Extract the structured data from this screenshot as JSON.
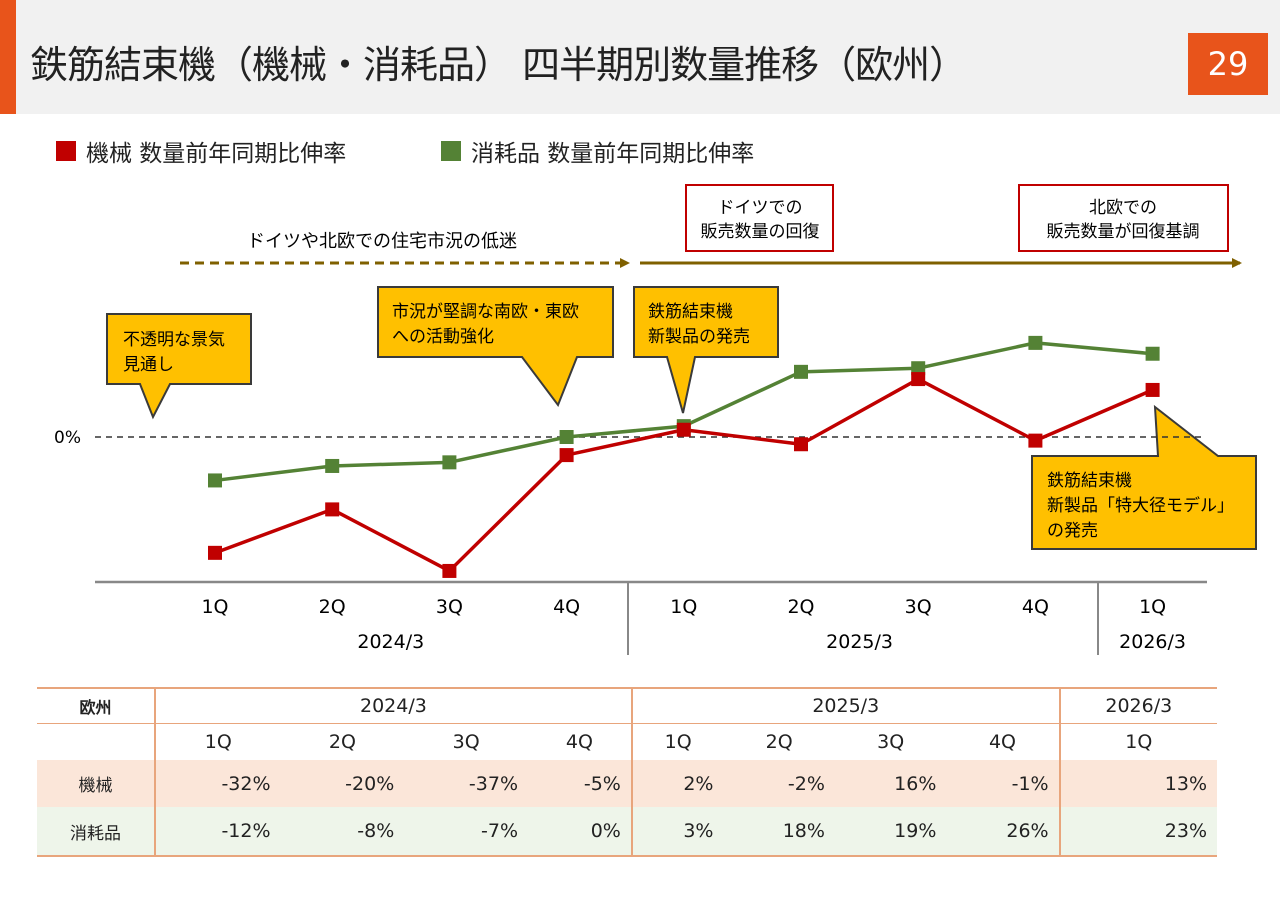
{
  "header": {
    "title": "鉄筋結束機（機械・消耗品） 四半期別数量推移（欧州）",
    "page_number": "29",
    "accent_color": "#e8541b"
  },
  "legend": [
    {
      "label": "機械 数量前年同期比伸率",
      "color": "#c00000"
    },
    {
      "label": "消耗品 数量前年同期比伸率",
      "color": "#548235"
    }
  ],
  "chart_data": {
    "type": "line",
    "title": "鉄筋結束機（機械・消耗品） 四半期別数量推移（欧州）",
    "categories": [
      "1Q",
      "2Q",
      "3Q",
      "4Q",
      "1Q",
      "2Q",
      "3Q",
      "4Q",
      "1Q"
    ],
    "groups": [
      {
        "label": "2024/3",
        "count": 4
      },
      {
        "label": "2025/3",
        "count": 4
      },
      {
        "label": "2026/3",
        "count": 1
      }
    ],
    "series": [
      {
        "name": "機械 数量前年同期比伸率",
        "color": "#c00000",
        "values": [
          -32,
          -20,
          -37,
          -5,
          2,
          -2,
          16,
          -1,
          13
        ]
      },
      {
        "name": "消耗品 数量前年同期比伸率",
        "color": "#548235",
        "values": [
          -12,
          -8,
          -7,
          0,
          3,
          18,
          19,
          26,
          23
        ]
      }
    ],
    "zero_label": "0%",
    "ylim": [
      -40,
      30
    ],
    "annotations": {
      "period_arrow_1": "ドイツや北欧での住宅市況の低迷",
      "box_germany": [
        "ドイツでの",
        "販売数量の回復"
      ],
      "box_nordic": [
        "北欧での",
        "販売数量が回復基調"
      ],
      "callout_1": [
        "不透明な景気",
        "見通し"
      ],
      "callout_2": [
        "市況が堅調な南欧・東欧",
        "への活動強化"
      ],
      "callout_3": [
        "鉄筋結束機",
        "新製品の発売"
      ],
      "callout_4": [
        "鉄筋結束機",
        "新製品「特大径モデル」",
        "の発売"
      ]
    }
  },
  "table": {
    "region_label": "欧州",
    "years": [
      "2024/3",
      "2025/3",
      "2026/3"
    ],
    "quarters": [
      "1Q",
      "2Q",
      "3Q",
      "4Q",
      "1Q",
      "2Q",
      "3Q",
      "4Q",
      "1Q"
    ],
    "rows": [
      {
        "label": "機械",
        "values": [
          "-32%",
          "-20%",
          "-37%",
          "-5%",
          "2%",
          "-2%",
          "16%",
          "-1%",
          "13%"
        ]
      },
      {
        "label": "消耗品",
        "values": [
          "-12%",
          "-8%",
          "-7%",
          "0%",
          "3%",
          "18%",
          "19%",
          "26%",
          "23%"
        ]
      }
    ]
  }
}
